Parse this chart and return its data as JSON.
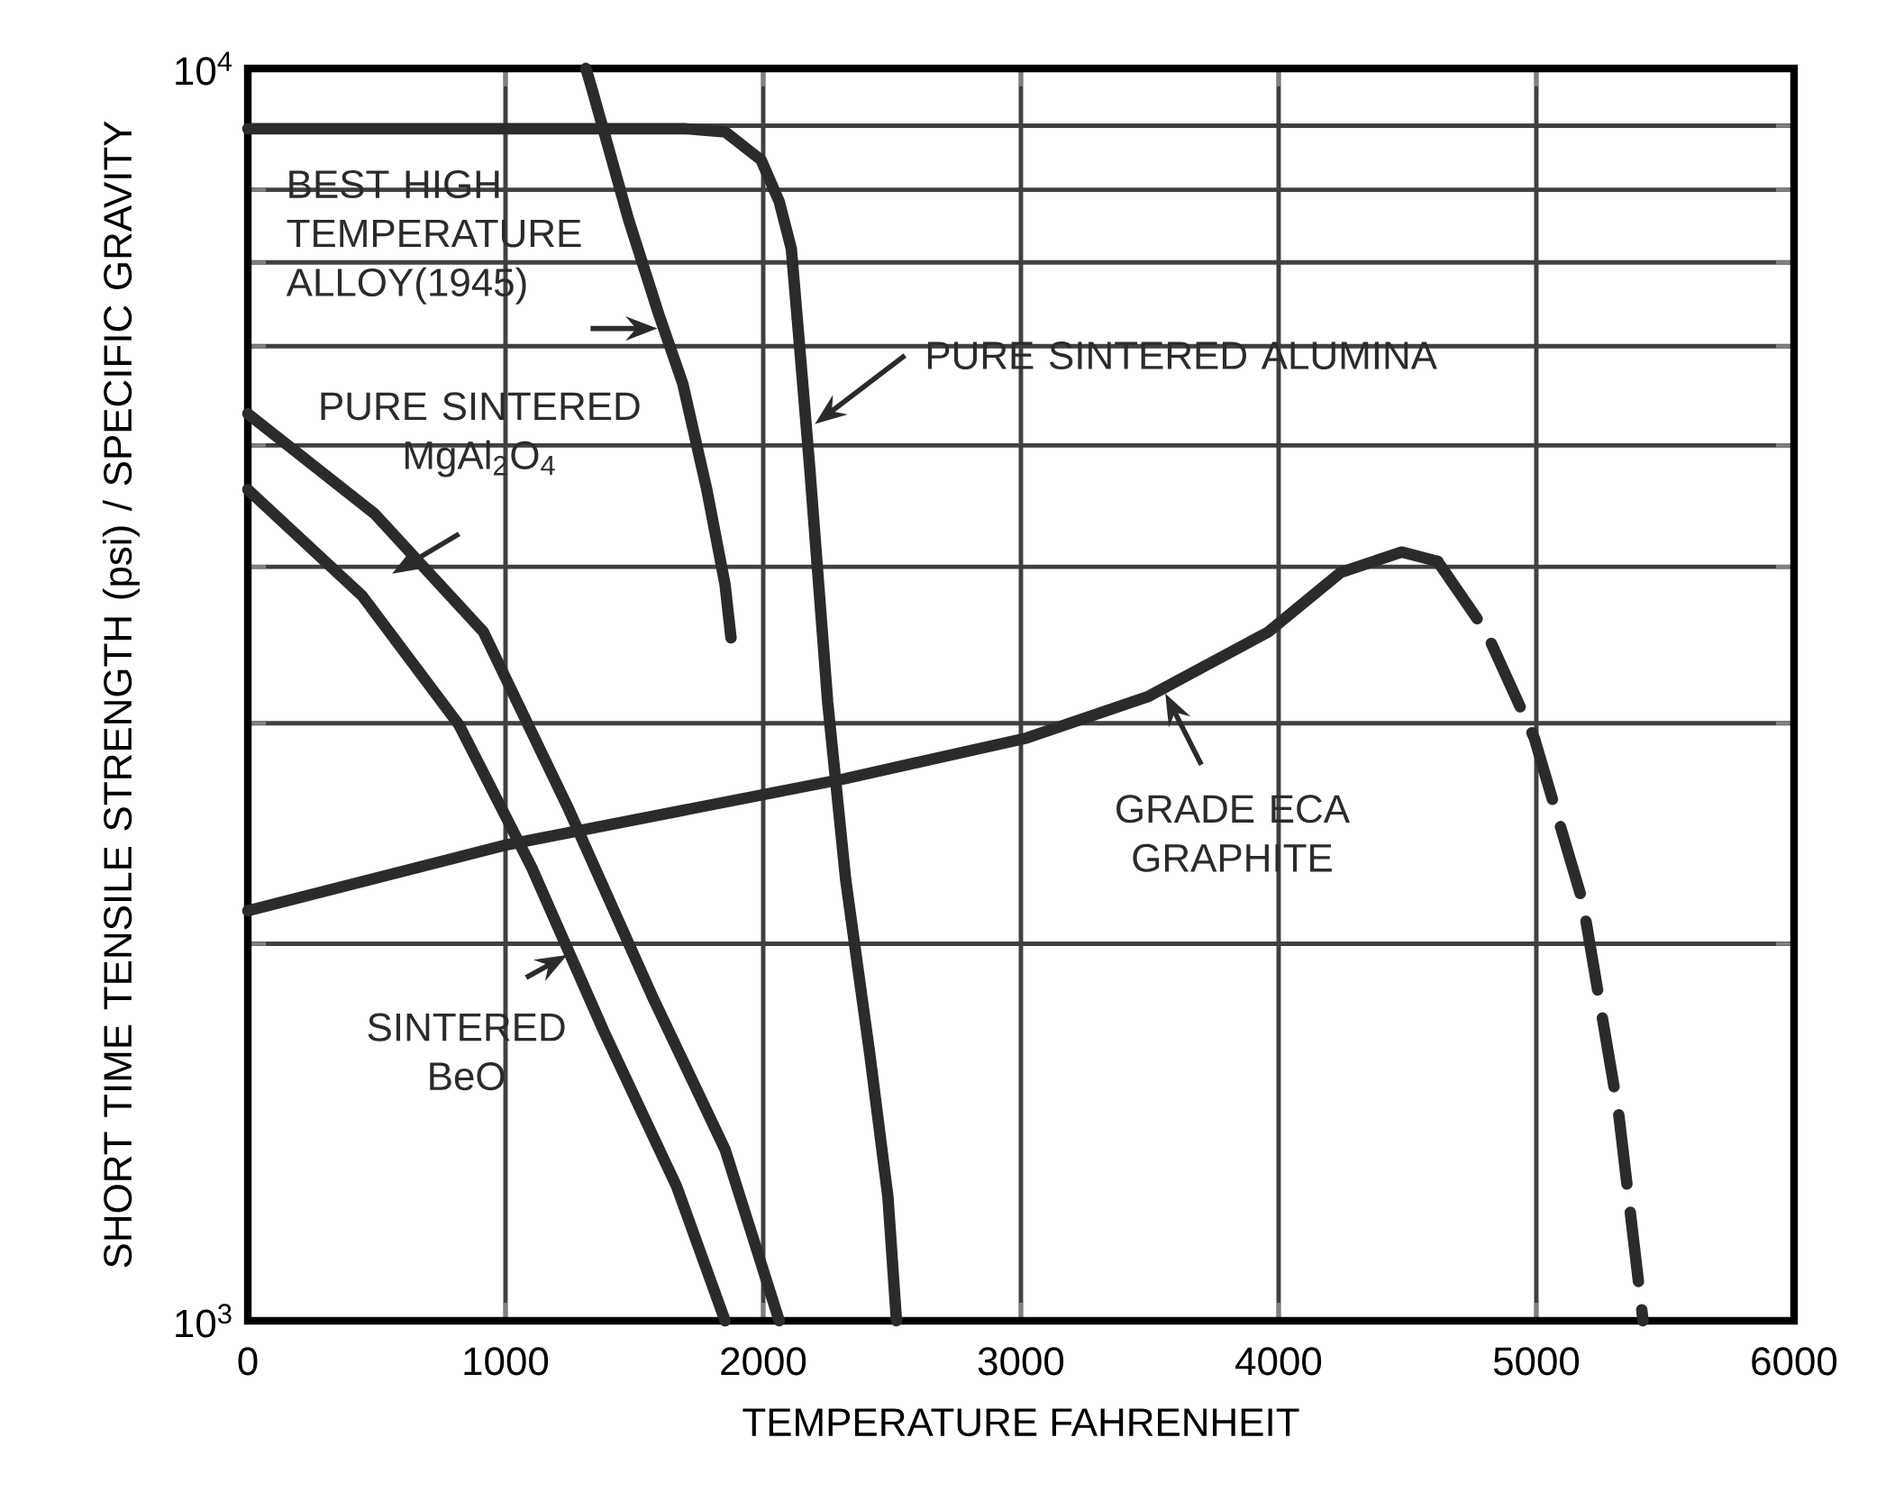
{
  "chart_data": {
    "type": "line",
    "xlabel": "TEMPERATURE FAHRENHEIT",
    "ylabel": "SHORT TIME TENSILE STRENGTH (psi) / SPECIFIC GRAVITY",
    "xlim": [
      0,
      6000
    ],
    "xticks": [
      0,
      1000,
      2000,
      3000,
      4000,
      5000,
      6000
    ],
    "ylim": [
      1000,
      10000
    ],
    "yticks": [
      {
        "value": 1000,
        "label": "10$^{3}$"
      },
      {
        "value": 2000,
        "label": null
      },
      {
        "value": 3000,
        "label": null
      },
      {
        "value": 4000,
        "label": null
      },
      {
        "value": 5000,
        "label": null
      },
      {
        "value": 6000,
        "label": null
      },
      {
        "value": 7000,
        "label": null
      },
      {
        "value": 8000,
        "label": null
      },
      {
        "value": 9000,
        "label": null
      },
      {
        "value": 10000,
        "label": "10$^{4}$"
      }
    ],
    "log": "y",
    "grid": true,
    "legend": false,
    "marker": "none",
    "series": [
      {
        "name": "BEST HIGH TEMPERATURE ALLOY(1945)",
        "color": "#2b2b2b",
        "line_style": "solid",
        "x": [
          1312,
          1336,
          1477,
          1594,
          1688,
          1781,
          1852,
          1875
        ],
        "values": [
          10000,
          9620,
          7580,
          6370,
          5600,
          4610,
          3870,
          3510
        ]
      },
      {
        "name": "PURE SINTERED ALUMINA",
        "color": "#2b2b2b",
        "line_style": "solid",
        "x": [
          0,
          1700,
          1852,
          1992,
          2062,
          2109,
          2142,
          2180,
          2250,
          2320,
          2414,
          2484,
          2517
        ],
        "values": [
          8950,
          8950,
          8900,
          8450,
          7830,
          7180,
          5970,
          4810,
          3120,
          2250,
          1630,
          1255,
          1000
        ]
      },
      {
        "name": "PURE SINTERED MgAl$_{2}$O$_{4}$",
        "color": "#2b2b2b",
        "line_style": "solid",
        "x": [
          0,
          492,
          914,
          1242,
          1570,
          1852,
          2062
        ],
        "values": [
          5300,
          4410,
          3550,
          2570,
          1815,
          1370,
          1000
        ]
      },
      {
        "name": "SINTERED BeO",
        "color": "#2b2b2b",
        "line_style": "solid",
        "x": [
          0,
          445,
          820,
          1102,
          1383,
          1664,
          1852
        ],
        "values": [
          4610,
          3790,
          2990,
          2300,
          1700,
          1280,
          1000
        ]
      },
      {
        "name": "GRADE ECA GRAPHITE",
        "color": "#2b2b2b",
        "line_style": "solid",
        "x": [
          0,
          1008,
          2320,
          3023,
          3492,
          3961,
          4242,
          4477,
          4617
        ],
        "values": [
          2125,
          2400,
          2710,
          2920,
          3150,
          3550,
          3960,
          4110,
          4040
        ]
      },
      {
        "color": "#2b2b2b",
        "line_style": "dashed",
        "x": [
          4617,
          4805,
          4992,
          5180,
          5320,
          5414
        ],
        "values": [
          4040,
          3550,
          2920,
          2160,
          1460,
          1000
        ]
      }
    ]
  }
}
